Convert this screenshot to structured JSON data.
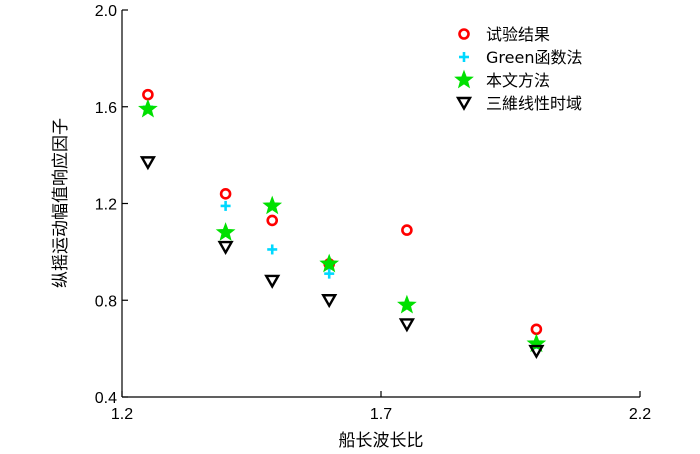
{
  "chart_data": {
    "type": "scatter",
    "title": "",
    "xlabel": "船长波长比",
    "ylabel": "纵摇运动幅值响应因子",
    "xlim": [
      1.2,
      2.2
    ],
    "ylim": [
      0.4,
      2.0
    ],
    "xticks": [
      1.2,
      1.7,
      2.2
    ],
    "xtick_labels": [
      "1.2",
      "1.7",
      "2.2"
    ],
    "yticks": [
      0.4,
      0.8,
      1.2,
      1.6,
      2.0
    ],
    "ytick_labels": [
      "0.4",
      "0.8",
      "1.2",
      "1.6",
      "2.0"
    ],
    "grid": false,
    "legend_position": "top-right",
    "series": [
      {
        "name": "试验结果",
        "marker": "circle",
        "color": "#ff0000",
        "points": [
          [
            1.25,
            1.65
          ],
          [
            1.4,
            1.24
          ],
          [
            1.49,
            1.13
          ],
          [
            1.6,
            0.95
          ],
          [
            1.75,
            1.09
          ],
          [
            2.0,
            0.68
          ]
        ]
      },
      {
        "name": "Green函数法",
        "marker": "plus",
        "color": "#00d8ff",
        "points": [
          [
            1.25,
            1.6
          ],
          [
            1.4,
            1.19
          ],
          [
            1.49,
            1.01
          ],
          [
            1.6,
            0.91
          ],
          [
            2.0,
            0.62
          ]
        ]
      },
      {
        "name": "本文方法",
        "marker": "star",
        "color": "#00e000",
        "points": [
          [
            1.25,
            1.59
          ],
          [
            1.4,
            1.08
          ],
          [
            1.49,
            1.19
          ],
          [
            1.6,
            0.95
          ],
          [
            1.75,
            0.78
          ],
          [
            2.0,
            0.62
          ]
        ]
      },
      {
        "name": "三維线性时域",
        "marker": "triangle-down",
        "color": "#000000",
        "points": [
          [
            1.25,
            1.37
          ],
          [
            1.4,
            1.02
          ],
          [
            1.49,
            0.88
          ],
          [
            1.6,
            0.8
          ],
          [
            1.75,
            0.7
          ],
          [
            2.0,
            0.59
          ]
        ]
      }
    ]
  }
}
